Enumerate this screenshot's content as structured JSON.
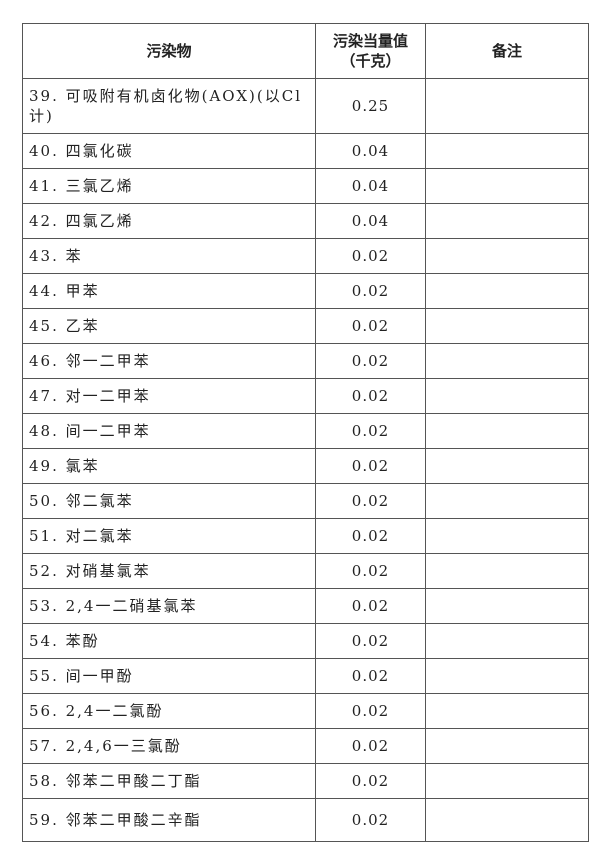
{
  "headers": {
    "pollutant": "污染物",
    "value_line1": "污染当量值",
    "value_line2": "（千克）",
    "remark": "备注"
  },
  "rows": [
    {
      "name": "39. 可吸附有机卤化物(AOX)(以Cl计)",
      "value": "0.25",
      "remark": ""
    },
    {
      "name": "40. 四氯化碳",
      "value": "0.04",
      "remark": ""
    },
    {
      "name": "41. 三氯乙烯",
      "value": "0.04",
      "remark": ""
    },
    {
      "name": "42. 四氯乙烯",
      "value": "0.04",
      "remark": ""
    },
    {
      "name": "43. 苯",
      "value": "0.02",
      "remark": ""
    },
    {
      "name": "44. 甲苯",
      "value": "0.02",
      "remark": ""
    },
    {
      "name": "45. 乙苯",
      "value": "0.02",
      "remark": ""
    },
    {
      "name": "46. 邻一二甲苯",
      "value": "0.02",
      "remark": ""
    },
    {
      "name": "47. 对一二甲苯",
      "value": "0.02",
      "remark": ""
    },
    {
      "name": "48. 间一二甲苯",
      "value": "0.02",
      "remark": ""
    },
    {
      "name": "49. 氯苯",
      "value": "0.02",
      "remark": ""
    },
    {
      "name": "50. 邻二氯苯",
      "value": "0.02",
      "remark": ""
    },
    {
      "name": "51. 对二氯苯",
      "value": "0.02",
      "remark": ""
    },
    {
      "name": "52. 对硝基氯苯",
      "value": "0.02",
      "remark": ""
    },
    {
      "name": "53. 2,4一二硝基氯苯",
      "value": "0.02",
      "remark": ""
    },
    {
      "name": "54. 苯酚",
      "value": "0.02",
      "remark": ""
    },
    {
      "name": "55. 间一甲酚",
      "value": "0.02",
      "remark": ""
    },
    {
      "name": "56. 2,4一二氯酚",
      "value": "0.02",
      "remark": ""
    },
    {
      "name": "57. 2,4,6一三氯酚",
      "value": "0.02",
      "remark": ""
    },
    {
      "name": "58. 邻苯二甲酸二丁酯",
      "value": "0.02",
      "remark": ""
    },
    {
      "name": "59. 邻苯二甲酸二辛酯",
      "value": "0.02",
      "remark": ""
    }
  ]
}
